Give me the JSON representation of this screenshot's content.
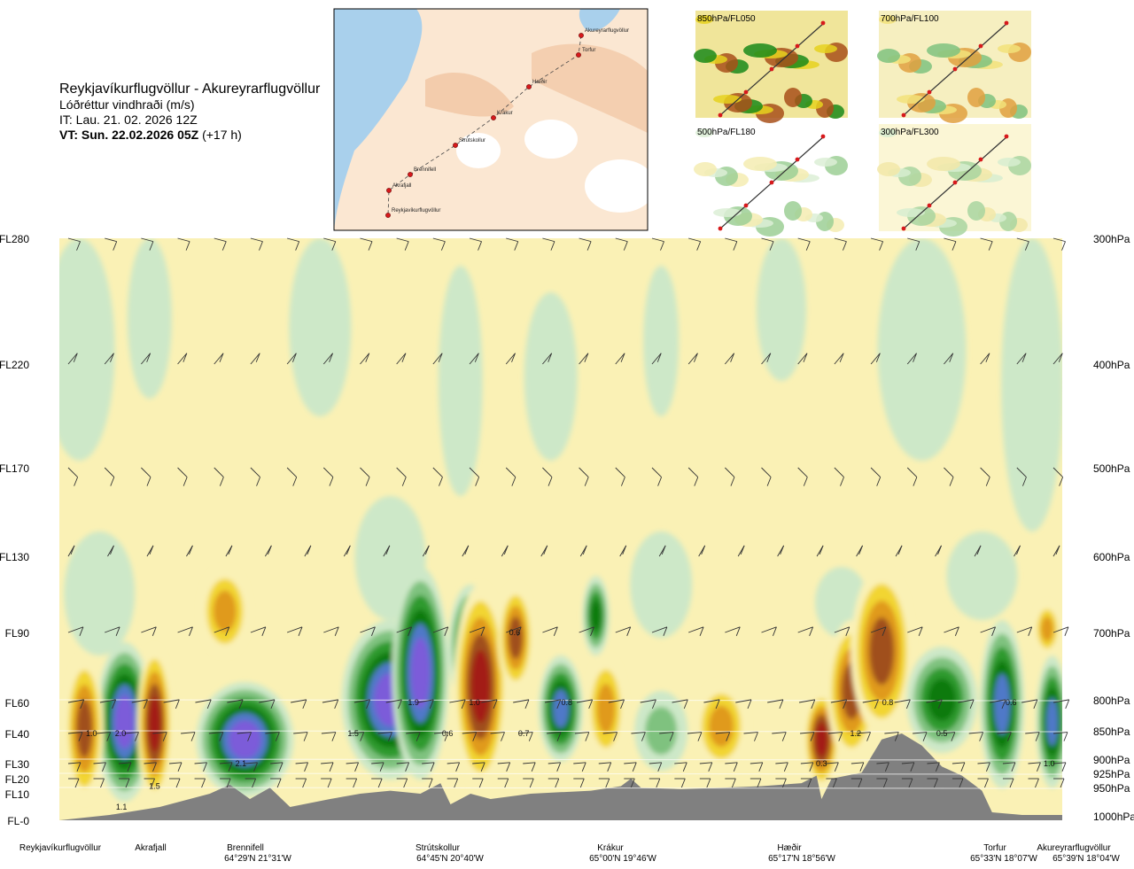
{
  "header": {
    "route": "Reykjavíkurflugvöllur - Akureyrarflugvöllur",
    "subtitle": "Lóðréttur vindhraði (m/s)",
    "issue_time": "IT: Lau. 21. 02. 2026 12Z",
    "valid_time": "VT: Sun. 22.02.2026 05Z",
    "lead_time": "(+17 h)"
  },
  "map": {
    "waypoints": [
      "Akureyrarflugvöllur",
      "Torfur",
      "Hæðir",
      "Krákur",
      "Strútskollur",
      "Brennifell",
      "Akrafjall",
      "Reykjavíkurflugvöllur"
    ]
  },
  "thumbnails": [
    {
      "label": "850hPa/FL050"
    },
    {
      "label": "700hPa/FL100"
    },
    {
      "label": "500hPa/FL180"
    },
    {
      "label": "300hPa/FL300"
    }
  ],
  "bottom_labels": [
    {
      "name": "Reykjavíkurflugvöllur",
      "coord": ""
    },
    {
      "name": "Akrafjall",
      "coord": ""
    },
    {
      "name": "Brennifell",
      "coord": "64°29'N 21°31'W"
    },
    {
      "name": "Strútskollur",
      "coord": "64°45'N 20°40'W"
    },
    {
      "name": "Krákur",
      "coord": "65°00'N 19°46'W"
    },
    {
      "name": "Hæðir",
      "coord": "65°17'N 18°56'W"
    },
    {
      "name": "Torfur",
      "coord": "65°33'N 18°07'W"
    },
    {
      "name": "Akureyrarflugvöllur",
      "coord": "65°39'N 18°04'W"
    }
  ],
  "colors": {
    "strong_up_1": "#7b5cd9",
    "strong_up_2": "#4f79c8",
    "up_dark_green": "#0e7a0e",
    "up_green": "#2f9a2f",
    "up_mid_green": "#7fc27f",
    "up_light_green": "#cde8c8",
    "up_very_light": "#f0f8e6",
    "down_light_yellow": "#faf1b5",
    "down_yellow": "#f2d533",
    "down_orange": "#e09a1f",
    "down_brown": "#a0501c",
    "down_red": "#a31b12",
    "terrain": "#808080"
  },
  "chart_data": {
    "type": "heatmap",
    "title": "",
    "xlabel": "",
    "ylabel": "",
    "left_axis": [
      "FL280",
      "FL220",
      "FL170",
      "FL130",
      "FL90",
      "FL60",
      "FL40",
      "FL30",
      "FL20",
      "FL10",
      "FL-0"
    ],
    "right_axis": [
      "300hPa",
      "400hPa",
      "500hPa",
      "600hPa",
      "700hPa",
      "800hPa",
      "850hPa",
      "900hPa",
      "925hPa",
      "950hPa",
      "1000hPa"
    ],
    "value_labels": [
      {
        "text": "1.0",
        "pos": 0.032,
        "fl": 40
      },
      {
        "text": "2.0",
        "pos": 0.061,
        "fl": 40
      },
      {
        "text": "1.1",
        "pos": 0.062,
        "fl": 5
      },
      {
        "text": "1.5",
        "pos": 0.095,
        "fl": 15
      },
      {
        "text": "2.1",
        "pos": 0.181,
        "fl": 30
      },
      {
        "text": "1.5",
        "pos": 0.293,
        "fl": 40
      },
      {
        "text": "1.9",
        "pos": 0.353,
        "fl": 60
      },
      {
        "text": "0.6",
        "pos": 0.387,
        "fl": 40
      },
      {
        "text": "1.0",
        "pos": 0.414,
        "fl": 60
      },
      {
        "text": "0.6",
        "pos": 0.454,
        "fl": 90
      },
      {
        "text": "0.7",
        "pos": 0.463,
        "fl": 40
      },
      {
        "text": "0.8",
        "pos": 0.506,
        "fl": 60
      },
      {
        "text": "0.3",
        "pos": 0.76,
        "fl": 30
      },
      {
        "text": "1.2",
        "pos": 0.794,
        "fl": 40
      },
      {
        "text": "0.8",
        "pos": 0.826,
        "fl": 60
      },
      {
        "text": "0.5",
        "pos": 0.88,
        "fl": 40
      },
      {
        "text": "0.6",
        "pos": 0.949,
        "fl": 60
      },
      {
        "text": "1.0",
        "pos": 0.987,
        "fl": 30
      }
    ],
    "terrain_profile": [
      [
        0.0,
        0
      ],
      [
        0.05,
        2
      ],
      [
        0.1,
        5
      ],
      [
        0.15,
        10
      ],
      [
        0.17,
        16
      ],
      [
        0.19,
        8
      ],
      [
        0.21,
        14
      ],
      [
        0.23,
        5
      ],
      [
        0.27,
        8
      ],
      [
        0.3,
        10
      ],
      [
        0.33,
        12
      ],
      [
        0.36,
        10
      ],
      [
        0.38,
        17
      ],
      [
        0.39,
        6
      ],
      [
        0.41,
        10
      ],
      [
        0.43,
        8
      ],
      [
        0.47,
        10
      ],
      [
        0.5,
        11
      ],
      [
        0.53,
        12
      ],
      [
        0.56,
        15
      ],
      [
        0.57,
        20
      ],
      [
        0.58,
        14
      ],
      [
        0.62,
        13
      ],
      [
        0.66,
        14
      ],
      [
        0.7,
        15
      ],
      [
        0.74,
        17
      ],
      [
        0.755,
        22
      ],
      [
        0.76,
        8
      ],
      [
        0.77,
        20
      ],
      [
        0.8,
        24
      ],
      [
        0.82,
        38
      ],
      [
        0.84,
        40
      ],
      [
        0.86,
        36
      ],
      [
        0.88,
        28
      ],
      [
        0.9,
        22
      ],
      [
        0.92,
        12
      ],
      [
        0.93,
        3
      ],
      [
        0.96,
        2
      ],
      [
        1.0,
        2
      ]
    ]
  }
}
